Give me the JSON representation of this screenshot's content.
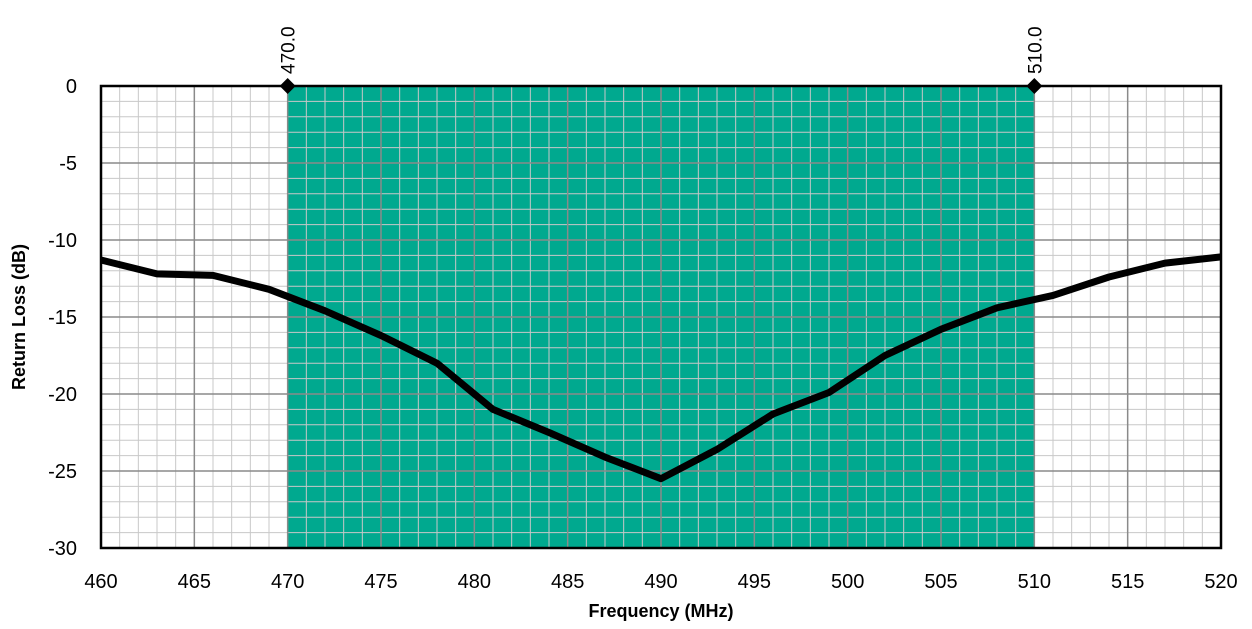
{
  "chart_data": {
    "type": "line",
    "title": "",
    "xlabel": "Frequency (MHz)",
    "ylabel": "Return Loss (dB)",
    "xlim": [
      460,
      520
    ],
    "ylim": [
      -30,
      0
    ],
    "x_ticks": [
      "460",
      "465",
      "470",
      "475",
      "480",
      "485",
      "490",
      "495",
      "500",
      "505",
      "510",
      "515",
      "520"
    ],
    "y_ticks": [
      "0",
      "-5",
      "-10",
      "-15",
      "-20",
      "-25",
      "-30"
    ],
    "grid": true,
    "legend": "none",
    "band": {
      "start": 470,
      "end": 510,
      "color": "#00a98f"
    },
    "markers": [
      {
        "x": 470,
        "label": "470.0"
      },
      {
        "x": 510,
        "label": "510.0"
      }
    ],
    "series": [
      {
        "color": "#000000",
        "x": [
          460,
          463,
          466,
          469,
          472,
          475,
          478,
          481,
          484,
          487,
          490,
          493,
          496,
          499,
          502,
          505,
          508,
          511,
          514,
          517,
          520
        ],
        "y": [
          -11.3,
          -12.2,
          -12.3,
          -13.2,
          -14.6,
          -16.2,
          -18.0,
          -21.0,
          -22.5,
          -24.1,
          -25.5,
          -23.6,
          -21.3,
          -19.9,
          -17.5,
          -15.8,
          -14.4,
          -13.6,
          -12.4,
          -11.5,
          -11.1
        ]
      }
    ]
  }
}
